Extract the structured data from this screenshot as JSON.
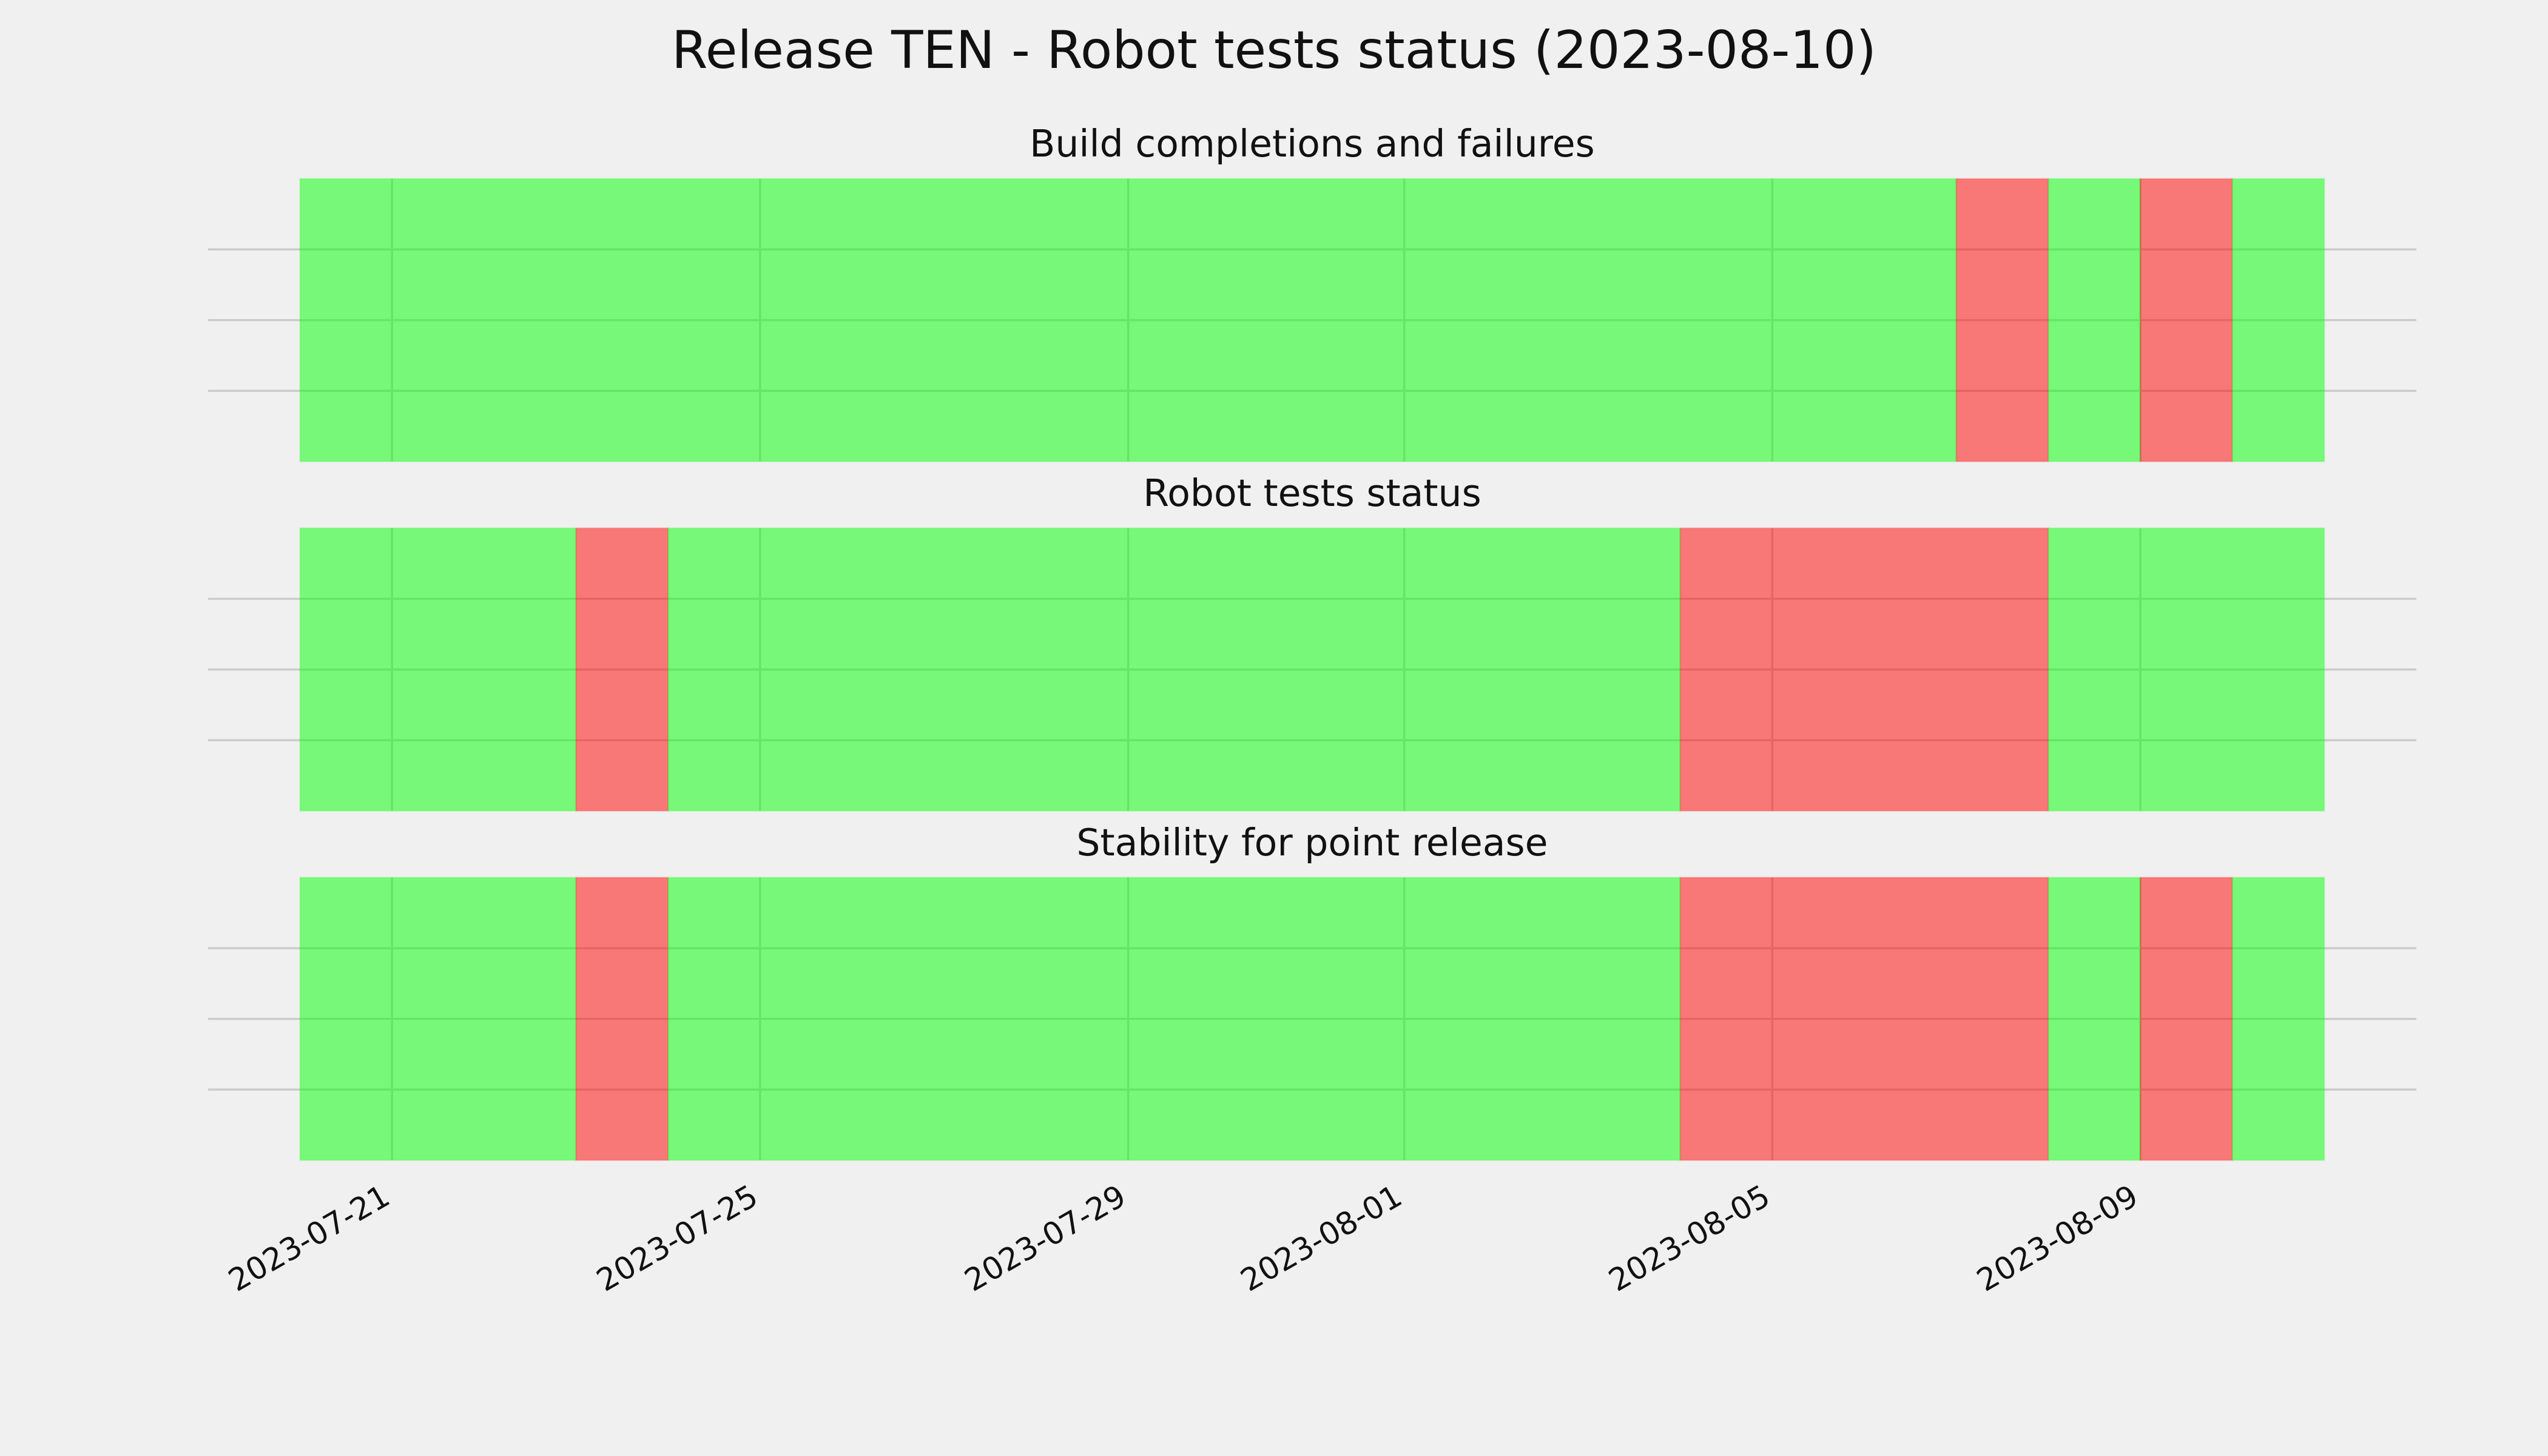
{
  "title": "Release TEN - Robot tests status (2023-08-10)",
  "chart_data": [
    {
      "type": "span",
      "title": "Build completions and failures",
      "xlim": [
        "2023-07-19",
        "2023-08-12"
      ],
      "ylim": [
        0,
        1
      ],
      "yticks": [
        0.25,
        0.5,
        0.75
      ],
      "grid": true,
      "xticks": [
        "2023-07-21",
        "2023-07-25",
        "2023-07-29",
        "2023-08-01",
        "2023-08-05",
        "2023-08-09"
      ],
      "spans": [
        {
          "start": "2023-07-20",
          "end": "2023-08-07",
          "color": "#00ff00"
        },
        {
          "start": "2023-08-07",
          "end": "2023-08-08",
          "color": "#ff0000"
        },
        {
          "start": "2023-08-08",
          "end": "2023-08-09",
          "color": "#00ff00"
        },
        {
          "start": "2023-08-09",
          "end": "2023-08-10",
          "color": "#ff0000"
        },
        {
          "start": "2023-08-10",
          "end": "2023-08-11",
          "color": "#00ff00"
        }
      ]
    },
    {
      "type": "span",
      "title": "Robot tests status",
      "xlim": [
        "2023-07-19",
        "2023-08-12"
      ],
      "ylim": [
        0,
        1
      ],
      "yticks": [
        0.25,
        0.5,
        0.75
      ],
      "grid": true,
      "xticks": [
        "2023-07-21",
        "2023-07-25",
        "2023-07-29",
        "2023-08-01",
        "2023-08-05",
        "2023-08-09"
      ],
      "spans": [
        {
          "start": "2023-07-20",
          "end": "2023-07-23",
          "color": "#00ff00"
        },
        {
          "start": "2023-07-23",
          "end": "2023-07-24",
          "color": "#ff0000"
        },
        {
          "start": "2023-07-24",
          "end": "2023-08-04",
          "color": "#00ff00"
        },
        {
          "start": "2023-08-04",
          "end": "2023-08-08",
          "color": "#ff0000"
        },
        {
          "start": "2023-08-08",
          "end": "2023-08-11",
          "color": "#00ff00"
        }
      ]
    },
    {
      "type": "span",
      "title": "Stability for point release",
      "xlim": [
        "2023-07-19",
        "2023-08-12"
      ],
      "ylim": [
        0,
        1
      ],
      "yticks": [
        0.25,
        0.5,
        0.75
      ],
      "grid": true,
      "xticks": [
        "2023-07-21",
        "2023-07-25",
        "2023-07-29",
        "2023-08-01",
        "2023-08-05",
        "2023-08-09"
      ],
      "show_xtick_labels": true,
      "spans": [
        {
          "start": "2023-07-20",
          "end": "2023-07-23",
          "color": "#00ff00"
        },
        {
          "start": "2023-07-23",
          "end": "2023-07-24",
          "color": "#ff0000"
        },
        {
          "start": "2023-07-24",
          "end": "2023-08-04",
          "color": "#00ff00"
        },
        {
          "start": "2023-08-04",
          "end": "2023-08-08",
          "color": "#ff0000"
        },
        {
          "start": "2023-08-08",
          "end": "2023-08-09",
          "color": "#00ff00"
        },
        {
          "start": "2023-08-09",
          "end": "2023-08-10",
          "color": "#ff0000"
        },
        {
          "start": "2023-08-10",
          "end": "2023-08-11",
          "color": "#00ff00"
        }
      ]
    }
  ]
}
